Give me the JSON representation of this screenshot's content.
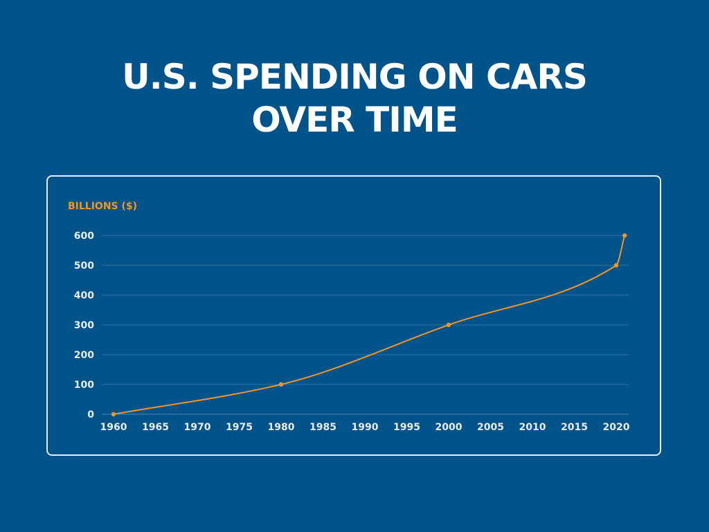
{
  "title_line1": "U.S. SPENDING ON CARS",
  "title_line2": "OVER TIME",
  "colors": {
    "background": "#02538a",
    "line": "#f0952a",
    "grid": "#2a6fa0",
    "text": "#e8eef5"
  },
  "chart_data": {
    "type": "line",
    "title": "U.S. SPENDING ON CARS OVER TIME",
    "ylabel": "BILLIONS ($)",
    "xlabel": "",
    "x": [
      1960,
      1980,
      2000,
      2020,
      2021
    ],
    "y": [
      0,
      100,
      300,
      500,
      600
    ],
    "xlim": [
      1960,
      2021
    ],
    "ylim": [
      0,
      600
    ],
    "x_ticks": [
      1960,
      1965,
      1970,
      1975,
      1980,
      1985,
      1990,
      1995,
      2000,
      2005,
      2010,
      2015,
      2020
    ],
    "y_ticks": [
      0,
      100,
      200,
      300,
      400,
      500,
      600
    ],
    "grid": "horizontal",
    "legend": "none"
  }
}
